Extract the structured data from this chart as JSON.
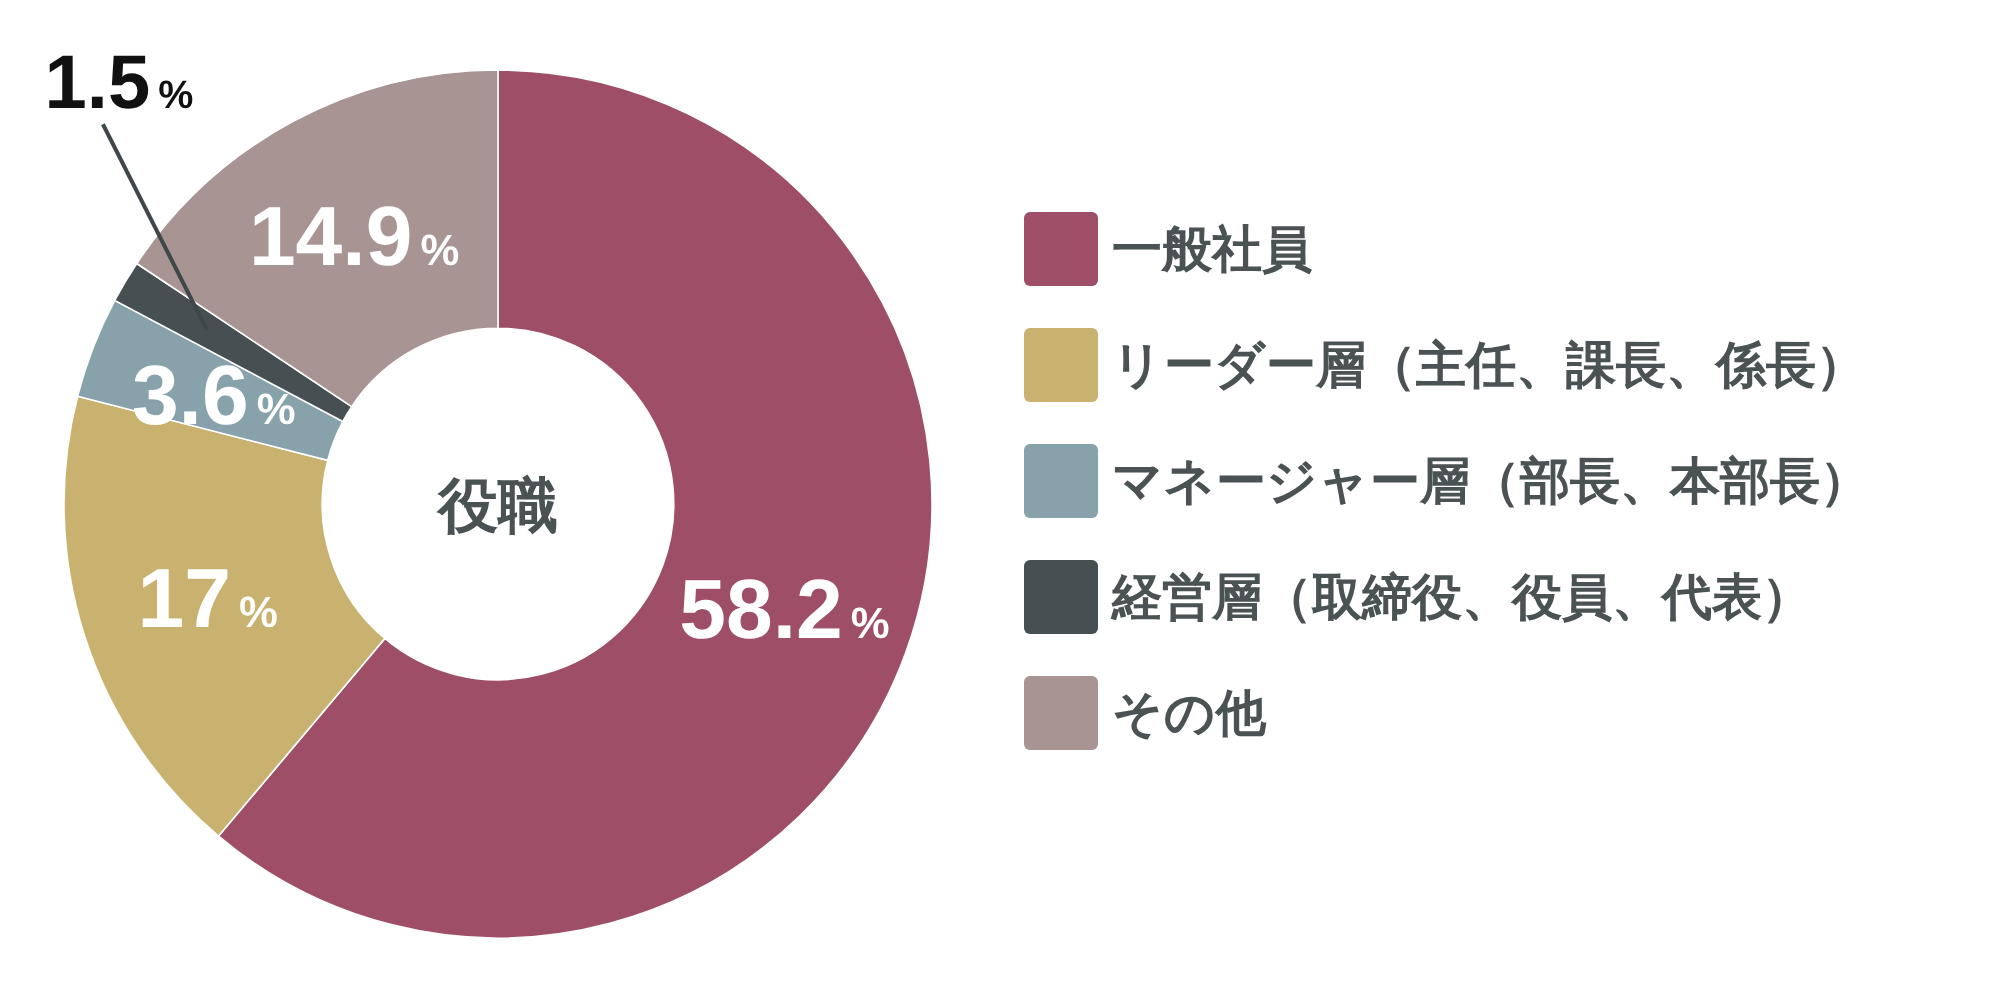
{
  "chart_data": {
    "type": "donut",
    "title": "役職",
    "categories": [
      "一般社員",
      "リーダー層（主任、課長、係長）",
      "マネージャー層（部長、本部長）",
      "経営層（取締役、役員、代表）",
      "その他"
    ],
    "values": [
      58.2,
      17,
      3.6,
      1.5,
      14.9
    ],
    "colors": [
      "#9e4f67",
      "#c9b26f",
      "#87a2ab",
      "#465052",
      "#a89493"
    ],
    "value_labels": [
      "58.2%",
      "17%",
      "3.6%",
      "1.5%",
      "14.9%"
    ],
    "legend": "right"
  }
}
